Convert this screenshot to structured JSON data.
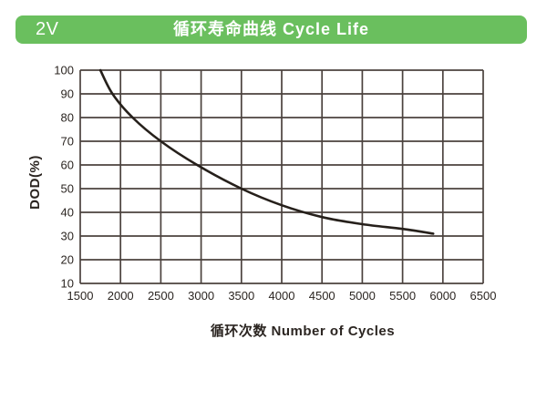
{
  "header": {
    "badge": "2V",
    "title": "循环寿命曲线 Cycle Life",
    "background_color": "#6abf5e",
    "text_color": "#ffffff"
  },
  "chart_data": {
    "type": "line",
    "title": "循环寿命曲线 Cycle Life",
    "xlabel": "循环次数 Number of Cycles",
    "ylabel": "DOD(%)",
    "xlim": [
      1500,
      6500
    ],
    "ylim": [
      10,
      100
    ],
    "x_ticks": [
      1500,
      2000,
      2500,
      3000,
      3500,
      4000,
      4500,
      5000,
      5500,
      6000,
      6500
    ],
    "y_ticks": [
      100,
      90,
      80,
      70,
      60,
      50,
      40,
      30,
      20,
      10
    ],
    "grid": true,
    "legend": "none",
    "series": [
      {
        "name": "cycle-life-curve",
        "points": [
          [
            1750,
            100
          ],
          [
            1900,
            90
          ],
          [
            2150,
            80
          ],
          [
            2500,
            70
          ],
          [
            2950,
            60
          ],
          [
            3500,
            50
          ],
          [
            4000,
            43
          ],
          [
            4500,
            38
          ],
          [
            5000,
            35
          ],
          [
            5500,
            33
          ],
          [
            5880,
            31
          ]
        ]
      }
    ],
    "colors": {
      "grid_line": "#4b423e",
      "curve": "#26201b",
      "text": "#2b2521"
    }
  }
}
